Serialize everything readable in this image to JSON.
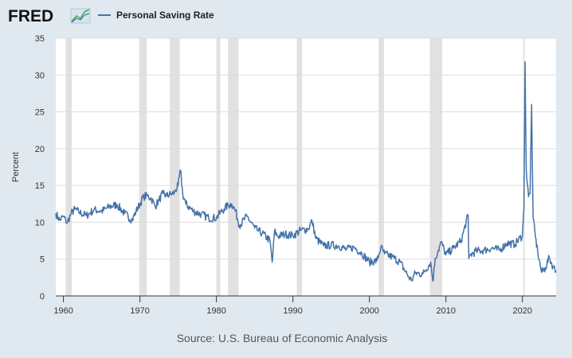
{
  "header": {
    "logo": "FRED",
    "logo_icon": "trend-chart-icon"
  },
  "colors": {
    "background": "#e1e9f0",
    "plot_background": "#ffffff",
    "line": "#4572a7",
    "recession": "#e1e1e1",
    "grid": "#dddddd"
  },
  "chart_data": {
    "type": "line",
    "title": "",
    "legend": "Personal Saving Rate",
    "legend_position": "top-left",
    "xlabel": "",
    "ylabel": "Percent",
    "source": "Source: U.S. Bureau of Economic Analysis",
    "xlim": [
      1959.0,
      2024.4
    ],
    "ylim": [
      0,
      35
    ],
    "y_ticks": [
      0,
      5,
      10,
      15,
      20,
      25,
      30,
      35
    ],
    "x_ticks": [
      1960,
      1970,
      1980,
      1990,
      2000,
      2010,
      2020
    ],
    "grid": true,
    "recessions": [
      [
        1960.3,
        1961.1
      ],
      [
        1969.9,
        1970.9
      ],
      [
        1973.9,
        1975.2
      ],
      [
        1980.0,
        1980.5
      ],
      [
        1981.5,
        1982.9
      ],
      [
        1990.5,
        1991.2
      ],
      [
        2001.2,
        2001.9
      ],
      [
        2007.9,
        2009.5
      ],
      [
        2020.1,
        2020.3
      ]
    ],
    "series": [
      {
        "name": "Personal Saving Rate",
        "x": [
          1959.0,
          1959.5,
          1960.0,
          1960.5,
          1961.0,
          1961.5,
          1962.0,
          1963.0,
          1964.0,
          1965.0,
          1966.0,
          1967.0,
          1968.0,
          1969.0,
          1969.5,
          1970.0,
          1970.5,
          1971.0,
          1971.5,
          1972.0,
          1972.5,
          1973.0,
          1973.5,
          1974.0,
          1974.5,
          1975.0,
          1975.3,
          1975.6,
          1976.0,
          1977.0,
          1978.0,
          1979.0,
          1980.0,
          1980.5,
          1981.0,
          1981.5,
          1982.0,
          1982.5,
          1983.0,
          1984.0,
          1985.0,
          1985.5,
          1986.0,
          1987.0,
          1987.3,
          1987.6,
          1988.0,
          1989.0,
          1990.0,
          1991.0,
          1992.0,
          1992.5,
          1993.0,
          1994.0,
          1995.0,
          1996.0,
          1997.0,
          1998.0,
          1999.0,
          2000.0,
          2001.0,
          2001.5,
          2002.0,
          2003.0,
          2004.0,
          2005.0,
          2005.5,
          2006.0,
          2007.0,
          2008.0,
          2008.3,
          2008.6,
          2009.0,
          2009.4,
          2010.0,
          2011.0,
          2012.0,
          2012.9,
          2013.0,
          2013.2,
          2014.0,
          2015.0,
          2016.0,
          2017.0,
          2018.0,
          2019.0,
          2020.0,
          2020.2,
          2020.35,
          2020.5,
          2020.8,
          2021.0,
          2021.2,
          2021.4,
          2021.7,
          2022.0,
          2022.5,
          2023.0,
          2023.5,
          2024.0,
          2024.4
        ],
        "values": [
          11.2,
          10.3,
          10.8,
          9.9,
          11.2,
          11.8,
          11.4,
          10.9,
          11.7,
          11.5,
          12.1,
          12.4,
          11.2,
          10.3,
          11.5,
          12.5,
          13.5,
          13.6,
          13.2,
          12.2,
          13.0,
          13.9,
          13.6,
          13.8,
          14.0,
          15.0,
          17.1,
          13.8,
          12.5,
          11.5,
          11.1,
          10.6,
          10.6,
          11.3,
          11.8,
          12.3,
          12.5,
          11.5,
          9.6,
          10.8,
          9.2,
          8.8,
          8.5,
          7.5,
          4.6,
          8.8,
          8.1,
          8.4,
          8.2,
          8.9,
          9.1,
          10.2,
          7.8,
          6.8,
          6.9,
          6.8,
          6.3,
          6.6,
          5.8,
          4.6,
          4.8,
          6.6,
          5.7,
          5.3,
          4.6,
          2.8,
          2.1,
          3.1,
          3.0,
          4.6,
          2.0,
          5.1,
          6.2,
          7.3,
          5.6,
          6.5,
          7.5,
          11.0,
          5.1,
          5.6,
          6.1,
          6.2,
          6.5,
          6.2,
          7.2,
          7.0,
          8.2,
          12.0,
          31.8,
          17.0,
          13.5,
          13.9,
          26.0,
          10.5,
          8.0,
          6.0,
          3.2,
          3.8,
          5.2,
          4.0,
          3.4
        ]
      }
    ]
  }
}
